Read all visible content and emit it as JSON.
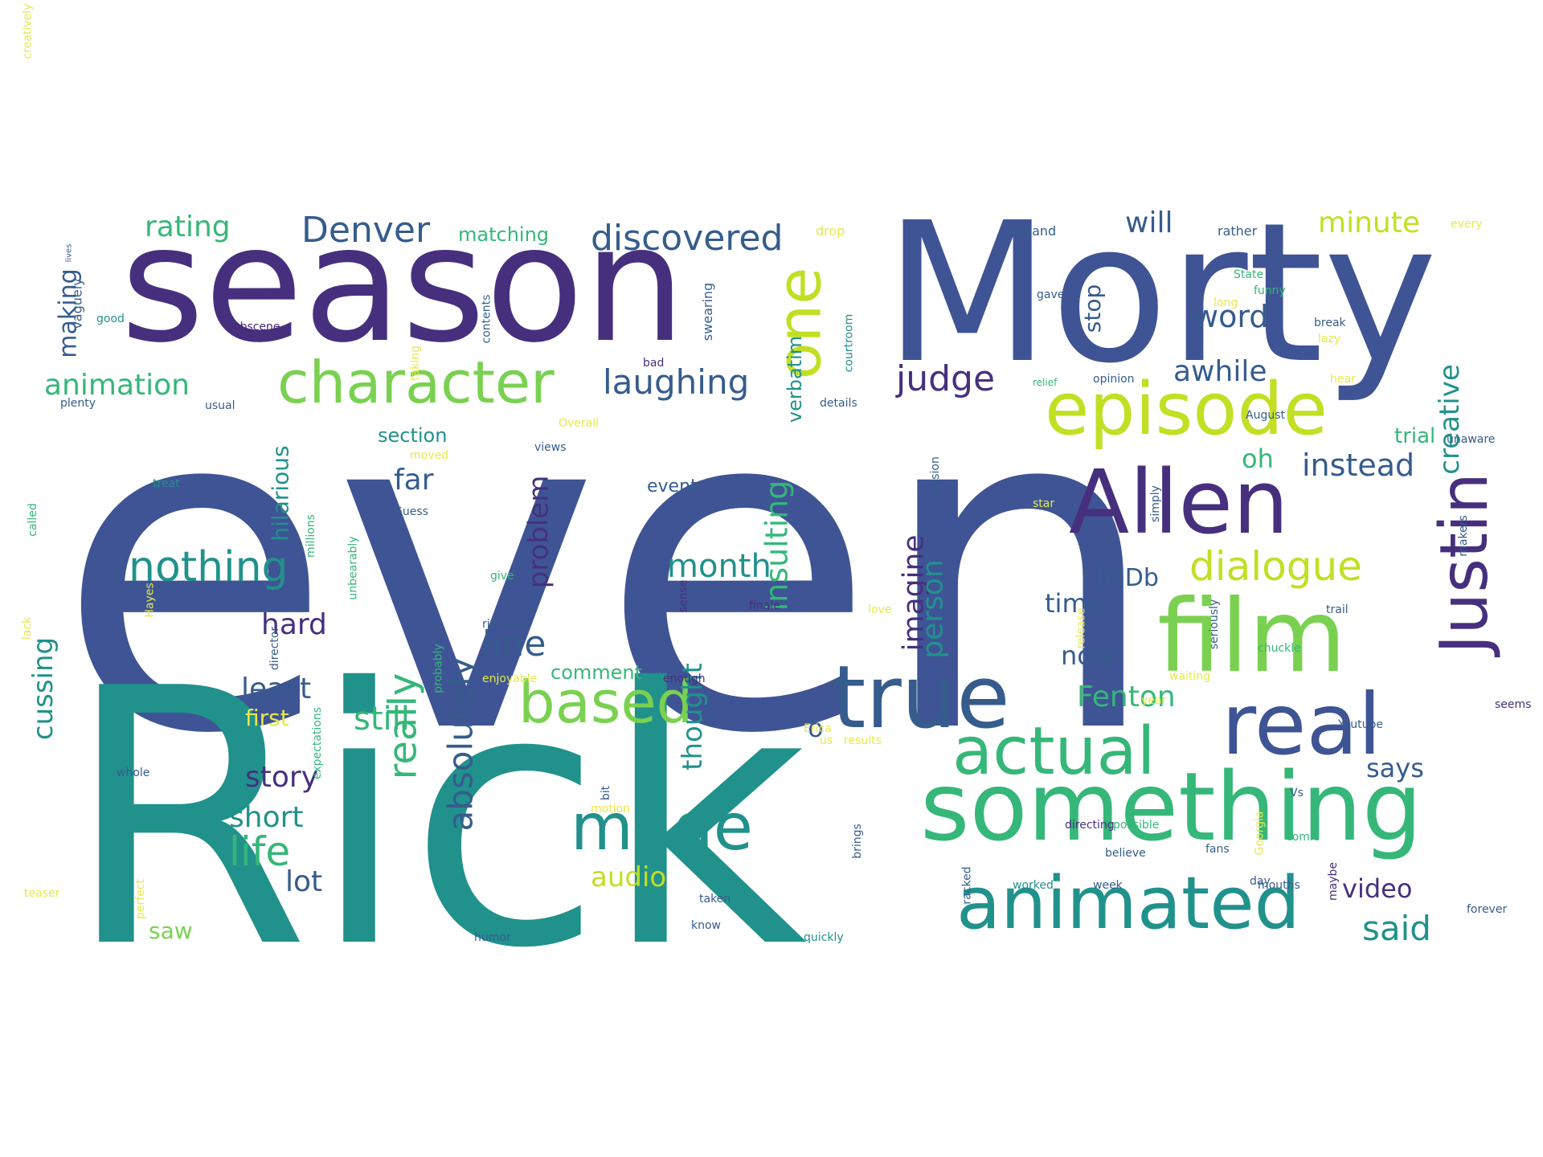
{
  "wordcloud": {
    "palette": {
      "purple": "#46307e",
      "indigo": "#3f5494",
      "blue": "#365c8d",
      "teal": "#21918c",
      "green": "#35b779",
      "lime": "#7ad151",
      "yellow": "#c2df23",
      "pale-yellow": "#e6e94a",
      "dark": "#482878"
    },
    "words": [
      {
        "text": "even",
        "weight": 1.0,
        "color": "indigo",
        "vertical": false
      },
      {
        "text": "Rick",
        "weight": 0.95,
        "color": "teal",
        "vertical": false
      },
      {
        "text": "Morty",
        "weight": 0.62,
        "color": "indigo",
        "vertical": false
      },
      {
        "text": "season",
        "weight": 0.58,
        "color": "purple",
        "vertical": false
      },
      {
        "text": "something",
        "weight": 0.38,
        "color": "green",
        "vertical": false
      },
      {
        "text": "film",
        "weight": 0.34,
        "color": "lime",
        "vertical": false
      },
      {
        "text": "Allen",
        "weight": 0.33,
        "color": "purple",
        "vertical": false
      },
      {
        "text": "true",
        "weight": 0.33,
        "color": "blue",
        "vertical": false
      },
      {
        "text": "real",
        "weight": 0.33,
        "color": "indigo",
        "vertical": false
      },
      {
        "text": "animated",
        "weight": 0.28,
        "color": "teal",
        "vertical": false
      },
      {
        "text": "episode",
        "weight": 0.28,
        "color": "yellow",
        "vertical": false
      },
      {
        "text": "Justin",
        "weight": 0.26,
        "color": "purple",
        "vertical": true
      },
      {
        "text": "actual",
        "weight": 0.25,
        "color": "green",
        "vertical": false
      },
      {
        "text": "based",
        "weight": 0.24,
        "color": "lime",
        "vertical": false
      },
      {
        "text": "made",
        "weight": 0.24,
        "color": "teal",
        "vertical": false
      },
      {
        "text": "character",
        "weight": 0.23,
        "color": "lime",
        "vertical": false
      },
      {
        "text": "one",
        "weight": 0.23,
        "color": "yellow",
        "vertical": true
      },
      {
        "text": "nothing",
        "weight": 0.17,
        "color": "teal",
        "vertical": false
      },
      {
        "text": "dialogue",
        "weight": 0.16,
        "color": "yellow",
        "vertical": false
      },
      {
        "text": "discovered",
        "weight": 0.14,
        "color": "blue",
        "vertical": false
      },
      {
        "text": "Denver",
        "weight": 0.14,
        "color": "blue",
        "vertical": false
      },
      {
        "text": "laughing",
        "weight": 0.14,
        "color": "blue",
        "vertical": false
      },
      {
        "text": "judge",
        "weight": 0.14,
        "color": "purple",
        "vertical": false
      },
      {
        "text": "really",
        "weight": 0.16,
        "color": "green",
        "vertical": true
      },
      {
        "text": "absolutely",
        "weight": 0.14,
        "color": "blue",
        "vertical": true
      },
      {
        "text": "life",
        "weight": 0.14,
        "color": "green",
        "vertical": false
      },
      {
        "text": "line",
        "weight": 0.14,
        "color": "blue",
        "vertical": false
      },
      {
        "text": "instead",
        "weight": 0.14,
        "color": "blue",
        "vertical": false
      },
      {
        "text": "insulting",
        "weight": 0.14,
        "color": "green",
        "vertical": true
      },
      {
        "text": "imagine",
        "weight": 0.13,
        "color": "purple",
        "vertical": true
      },
      {
        "text": "month",
        "weight": 0.13,
        "color": "teal",
        "vertical": false
      },
      {
        "text": "animation",
        "weight": 0.12,
        "color": "green",
        "vertical": false
      },
      {
        "text": "rating",
        "weight": 0.12,
        "color": "green",
        "vertical": false
      },
      {
        "text": "awhile",
        "weight": 0.12,
        "color": "blue",
        "vertical": false
      },
      {
        "text": "will",
        "weight": 0.12,
        "color": "blue",
        "vertical": false
      },
      {
        "text": "word",
        "weight": 0.12,
        "color": "blue",
        "vertical": false
      },
      {
        "text": "minute",
        "weight": 0.12,
        "color": "yellow",
        "vertical": false
      },
      {
        "text": "Fenton",
        "weight": 0.12,
        "color": "green",
        "vertical": false
      },
      {
        "text": "said",
        "weight": 0.12,
        "color": "teal",
        "vertical": false
      },
      {
        "text": "person",
        "weight": 0.12,
        "color": "teal",
        "vertical": true
      },
      {
        "text": "cussing",
        "weight": 0.12,
        "color": "teal",
        "vertical": true
      },
      {
        "text": "story",
        "weight": 0.12,
        "color": "purple",
        "vertical": false
      },
      {
        "text": "short",
        "weight": 0.12,
        "color": "teal",
        "vertical": false
      },
      {
        "text": "still",
        "weight": 0.12,
        "color": "green",
        "vertical": false
      },
      {
        "text": "least",
        "weight": 0.12,
        "color": "blue",
        "vertical": false
      },
      {
        "text": "hard",
        "weight": 0.11,
        "color": "purple",
        "vertical": false
      },
      {
        "text": "far",
        "weight": 0.11,
        "color": "blue",
        "vertical": false
      },
      {
        "text": "lot",
        "weight": 0.11,
        "color": "blue",
        "vertical": false
      },
      {
        "text": "audio",
        "weight": 0.11,
        "color": "yellow",
        "vertical": false
      },
      {
        "text": "thought",
        "weight": 0.11,
        "color": "teal",
        "vertical": true
      },
      {
        "text": "problem",
        "weight": 0.11,
        "color": "purple",
        "vertical": true
      },
      {
        "text": "now",
        "weight": 0.11,
        "color": "blue",
        "vertical": false
      },
      {
        "text": "time",
        "weight": 0.11,
        "color": "blue",
        "vertical": false
      },
      {
        "text": "creative",
        "weight": 0.11,
        "color": "teal",
        "vertical": true
      },
      {
        "text": "says",
        "weight": 0.11,
        "color": "blue",
        "vertical": false
      },
      {
        "text": "video",
        "weight": 0.1,
        "color": "purple",
        "vertical": false
      },
      {
        "text": "oh",
        "weight": 0.1,
        "color": "green",
        "vertical": false
      },
      {
        "text": "o",
        "weight": 0.1,
        "color": "blue",
        "vertical": false
      },
      {
        "text": "making",
        "weight": 0.1,
        "color": "blue",
        "vertical": true
      },
      {
        "text": "IMDb",
        "weight": 0.09,
        "color": "blue",
        "vertical": false
      },
      {
        "text": "saw",
        "weight": 0.09,
        "color": "lime",
        "vertical": false
      },
      {
        "text": "stop",
        "weight": 0.09,
        "color": "blue",
        "vertical": true
      },
      {
        "text": "hilarious",
        "weight": 0.09,
        "color": "teal",
        "vertical": true
      },
      {
        "text": "trial",
        "weight": 0.09,
        "color": "green",
        "vertical": false
      },
      {
        "text": "first",
        "weight": 0.09,
        "color": "pale-yellow",
        "vertical": false
      },
      {
        "text": "verbatim",
        "weight": 0.08,
        "color": "teal",
        "vertical": true
      },
      {
        "text": "section",
        "weight": 0.08,
        "color": "teal",
        "vertical": false
      },
      {
        "text": "matching",
        "weight": 0.08,
        "color": "green",
        "vertical": false
      },
      {
        "text": "comment",
        "weight": 0.08,
        "color": "green",
        "vertical": false
      },
      {
        "text": "event",
        "weight": 0.07,
        "color": "blue",
        "vertical": false
      },
      {
        "text": "swearing",
        "weight": 0.06,
        "color": "blue",
        "vertical": true
      },
      {
        "text": "vaguely",
        "weight": 0.06,
        "color": "blue",
        "vertical": true
      },
      {
        "text": "obscene",
        "weight": 0.06,
        "color": "dark",
        "vertical": false
      },
      {
        "text": "taking",
        "weight": 0.06,
        "color": "pale-yellow",
        "vertical": true
      },
      {
        "text": "contents",
        "weight": 0.06,
        "color": "blue",
        "vertical": true
      },
      {
        "text": "courtroom",
        "weight": 0.06,
        "color": "teal",
        "vertical": true
      },
      {
        "text": "good",
        "weight": 0.06,
        "color": "teal",
        "vertical": false
      },
      {
        "text": "plenty",
        "weight": 0.06,
        "color": "blue",
        "vertical": false
      },
      {
        "text": "usual",
        "weight": 0.06,
        "color": "blue",
        "vertical": false
      },
      {
        "text": "Overall",
        "weight": 0.06,
        "color": "pale-yellow",
        "vertical": false
      },
      {
        "text": "moved",
        "weight": 0.06,
        "color": "pale-yellow",
        "vertical": false
      },
      {
        "text": "views",
        "weight": 0.06,
        "color": "blue",
        "vertical": false
      },
      {
        "text": "treat",
        "weight": 0.06,
        "color": "teal",
        "vertical": false
      },
      {
        "text": "Guess",
        "weight": 0.06,
        "color": "blue",
        "vertical": false
      },
      {
        "text": "bad",
        "weight": 0.06,
        "color": "purple",
        "vertical": false
      },
      {
        "text": "drop",
        "weight": 0.06,
        "color": "pale-yellow",
        "vertical": false
      },
      {
        "text": "Roiland",
        "weight": 0.06,
        "color": "blue",
        "vertical": false
      },
      {
        "text": "rather",
        "weight": 0.06,
        "color": "blue",
        "vertical": false
      },
      {
        "text": "every",
        "weight": 0.06,
        "color": "pale-yellow",
        "vertical": false
      },
      {
        "text": "State",
        "weight": 0.06,
        "color": "green",
        "vertical": false
      },
      {
        "text": "funny",
        "weight": 0.06,
        "color": "green",
        "vertical": false
      },
      {
        "text": "gave",
        "weight": 0.06,
        "color": "blue",
        "vertical": false
      },
      {
        "text": "long",
        "weight": 0.06,
        "color": "pale-yellow",
        "vertical": false
      },
      {
        "text": "break",
        "weight": 0.06,
        "color": "blue",
        "vertical": false
      },
      {
        "text": "lazy",
        "weight": 0.06,
        "color": "pale-yellow",
        "vertical": false
      },
      {
        "text": "relief",
        "weight": 0.06,
        "color": "green",
        "vertical": false
      },
      {
        "text": "opinion",
        "weight": 0.05,
        "color": "blue",
        "vertical": false
      },
      {
        "text": "hear",
        "weight": 0.06,
        "color": "pale-yellow",
        "vertical": false
      },
      {
        "text": "details",
        "weight": 0.06,
        "color": "blue",
        "vertical": false
      },
      {
        "text": "August",
        "weight": 0.06,
        "color": "blue",
        "vertical": false
      },
      {
        "text": "unaware",
        "weight": 0.06,
        "color": "blue",
        "vertical": false
      },
      {
        "text": "decision",
        "weight": 0.06,
        "color": "blue",
        "vertical": true
      },
      {
        "text": "star",
        "weight": 0.06,
        "color": "pale-yellow",
        "vertical": false
      },
      {
        "text": "simply",
        "weight": 0.06,
        "color": "blue",
        "vertical": true
      },
      {
        "text": "makers",
        "weight": 0.06,
        "color": "blue",
        "vertical": true
      },
      {
        "text": "Hayes",
        "weight": 0.06,
        "color": "pale-yellow",
        "vertical": true
      },
      {
        "text": "give",
        "weight": 0.06,
        "color": "green",
        "vertical": false
      },
      {
        "text": "sense",
        "weight": 0.06,
        "color": "purple",
        "vertical": true
      },
      {
        "text": "rickness",
        "weight": 0.06,
        "color": "blue",
        "vertical": false
      },
      {
        "text": "love",
        "weight": 0.06,
        "color": "pale-yellow",
        "vertical": false
      },
      {
        "text": "finale",
        "weight": 0.06,
        "color": "purple",
        "vertical": false
      },
      {
        "text": "trail",
        "weight": 0.06,
        "color": "blue",
        "vertical": false
      },
      {
        "text": "release",
        "weight": 0.06,
        "color": "pale-yellow",
        "vertical": true
      },
      {
        "text": "seriously",
        "weight": 0.06,
        "color": "blue",
        "vertical": true
      },
      {
        "text": "chuckle",
        "weight": 0.06,
        "color": "green",
        "vertical": false
      },
      {
        "text": "waiting",
        "weight": 0.06,
        "color": "pale-yellow",
        "vertical": false
      },
      {
        "text": "director",
        "weight": 0.06,
        "color": "blue",
        "vertical": true
      },
      {
        "text": "probably",
        "weight": 0.06,
        "color": "green",
        "vertical": true
      },
      {
        "text": "enjoyable",
        "weight": 0.06,
        "color": "pale-yellow",
        "vertical": false
      },
      {
        "text": "enough",
        "weight": 0.06,
        "color": "purple",
        "vertical": false
      },
      {
        "text": "Erica",
        "weight": 0.06,
        "color": "pale-yellow",
        "vertical": false
      },
      {
        "text": "year",
        "weight": 0.06,
        "color": "pale-yellow",
        "vertical": false
      },
      {
        "text": "us",
        "weight": 0.06,
        "color": "pale-yellow",
        "vertical": false
      },
      {
        "text": "results",
        "weight": 0.06,
        "color": "pale-yellow",
        "vertical": false
      },
      {
        "text": "Youtube",
        "weight": 0.06,
        "color": "blue",
        "vertical": false
      },
      {
        "text": "seems",
        "weight": 0.06,
        "color": "purple",
        "vertical": false
      },
      {
        "text": "believe",
        "weight": 0.06,
        "color": "blue",
        "vertical": false
      },
      {
        "text": "day",
        "weight": 0.06,
        "color": "blue",
        "vertical": false
      },
      {
        "text": "expectations",
        "weight": 0.06,
        "color": "green",
        "vertical": true
      },
      {
        "text": "whole",
        "weight": 0.06,
        "color": "blue",
        "vertical": false
      },
      {
        "text": "bit",
        "weight": 0.06,
        "color": "blue",
        "vertical": true
      },
      {
        "text": "motion",
        "weight": 0.06,
        "color": "pale-yellow",
        "vertical": false
      },
      {
        "text": "directing",
        "weight": 0.06,
        "color": "purple",
        "vertical": false
      },
      {
        "text": "possible",
        "weight": 0.06,
        "color": "green",
        "vertical": false
      },
      {
        "text": "comic",
        "weight": 0.06,
        "color": "green",
        "vertical": false
      },
      {
        "text": "fans",
        "weight": 0.06,
        "color": "blue",
        "vertical": false
      },
      {
        "text": "maybe",
        "weight": 0.06,
        "color": "purple",
        "vertical": true
      },
      {
        "text": "Vs",
        "weight": 0.06,
        "color": "blue",
        "vertical": false
      },
      {
        "text": "Georgia",
        "weight": 0.06,
        "color": "pale-yellow",
        "vertical": true
      },
      {
        "text": "brings",
        "weight": 0.06,
        "color": "blue",
        "vertical": true
      },
      {
        "text": "racked",
        "weight": 0.06,
        "color": "blue",
        "vertical": true
      },
      {
        "text": "worked",
        "weight": 0.06,
        "color": "teal",
        "vertical": false
      },
      {
        "text": "week",
        "weight": 0.06,
        "color": "blue",
        "vertical": false
      },
      {
        "text": "mouths",
        "weight": 0.06,
        "color": "blue",
        "vertical": false
      },
      {
        "text": "teaser",
        "weight": 0.06,
        "color": "pale-yellow",
        "vertical": false
      },
      {
        "text": "perfect",
        "weight": 0.06,
        "color": "pale-yellow",
        "vertical": true
      },
      {
        "text": "taken",
        "weight": 0.06,
        "color": "blue",
        "vertical": false
      },
      {
        "text": "know",
        "weight": 0.06,
        "color": "blue",
        "vertical": false
      },
      {
        "text": "humor",
        "weight": 0.06,
        "color": "blue",
        "vertical": false
      },
      {
        "text": "quickly",
        "weight": 0.06,
        "color": "teal",
        "vertical": false
      },
      {
        "text": "forever",
        "weight": 0.06,
        "color": "blue",
        "vertical": false
      },
      {
        "text": "lack",
        "weight": 0.06,
        "color": "pale-yellow",
        "vertical": true
      },
      {
        "text": "called",
        "weight": 0.06,
        "color": "green",
        "vertical": true
      },
      {
        "text": "millions",
        "weight": 0.06,
        "color": "green",
        "vertical": true
      },
      {
        "text": "unbearably",
        "weight": 0.06,
        "color": "green",
        "vertical": true
      },
      {
        "text": "lives",
        "weight": 0.06,
        "color": "blue",
        "vertical": true
      },
      {
        "text": "creatively",
        "weight": 0.05,
        "color": "pale-yellow",
        "vertical": true
      }
    ]
  }
}
